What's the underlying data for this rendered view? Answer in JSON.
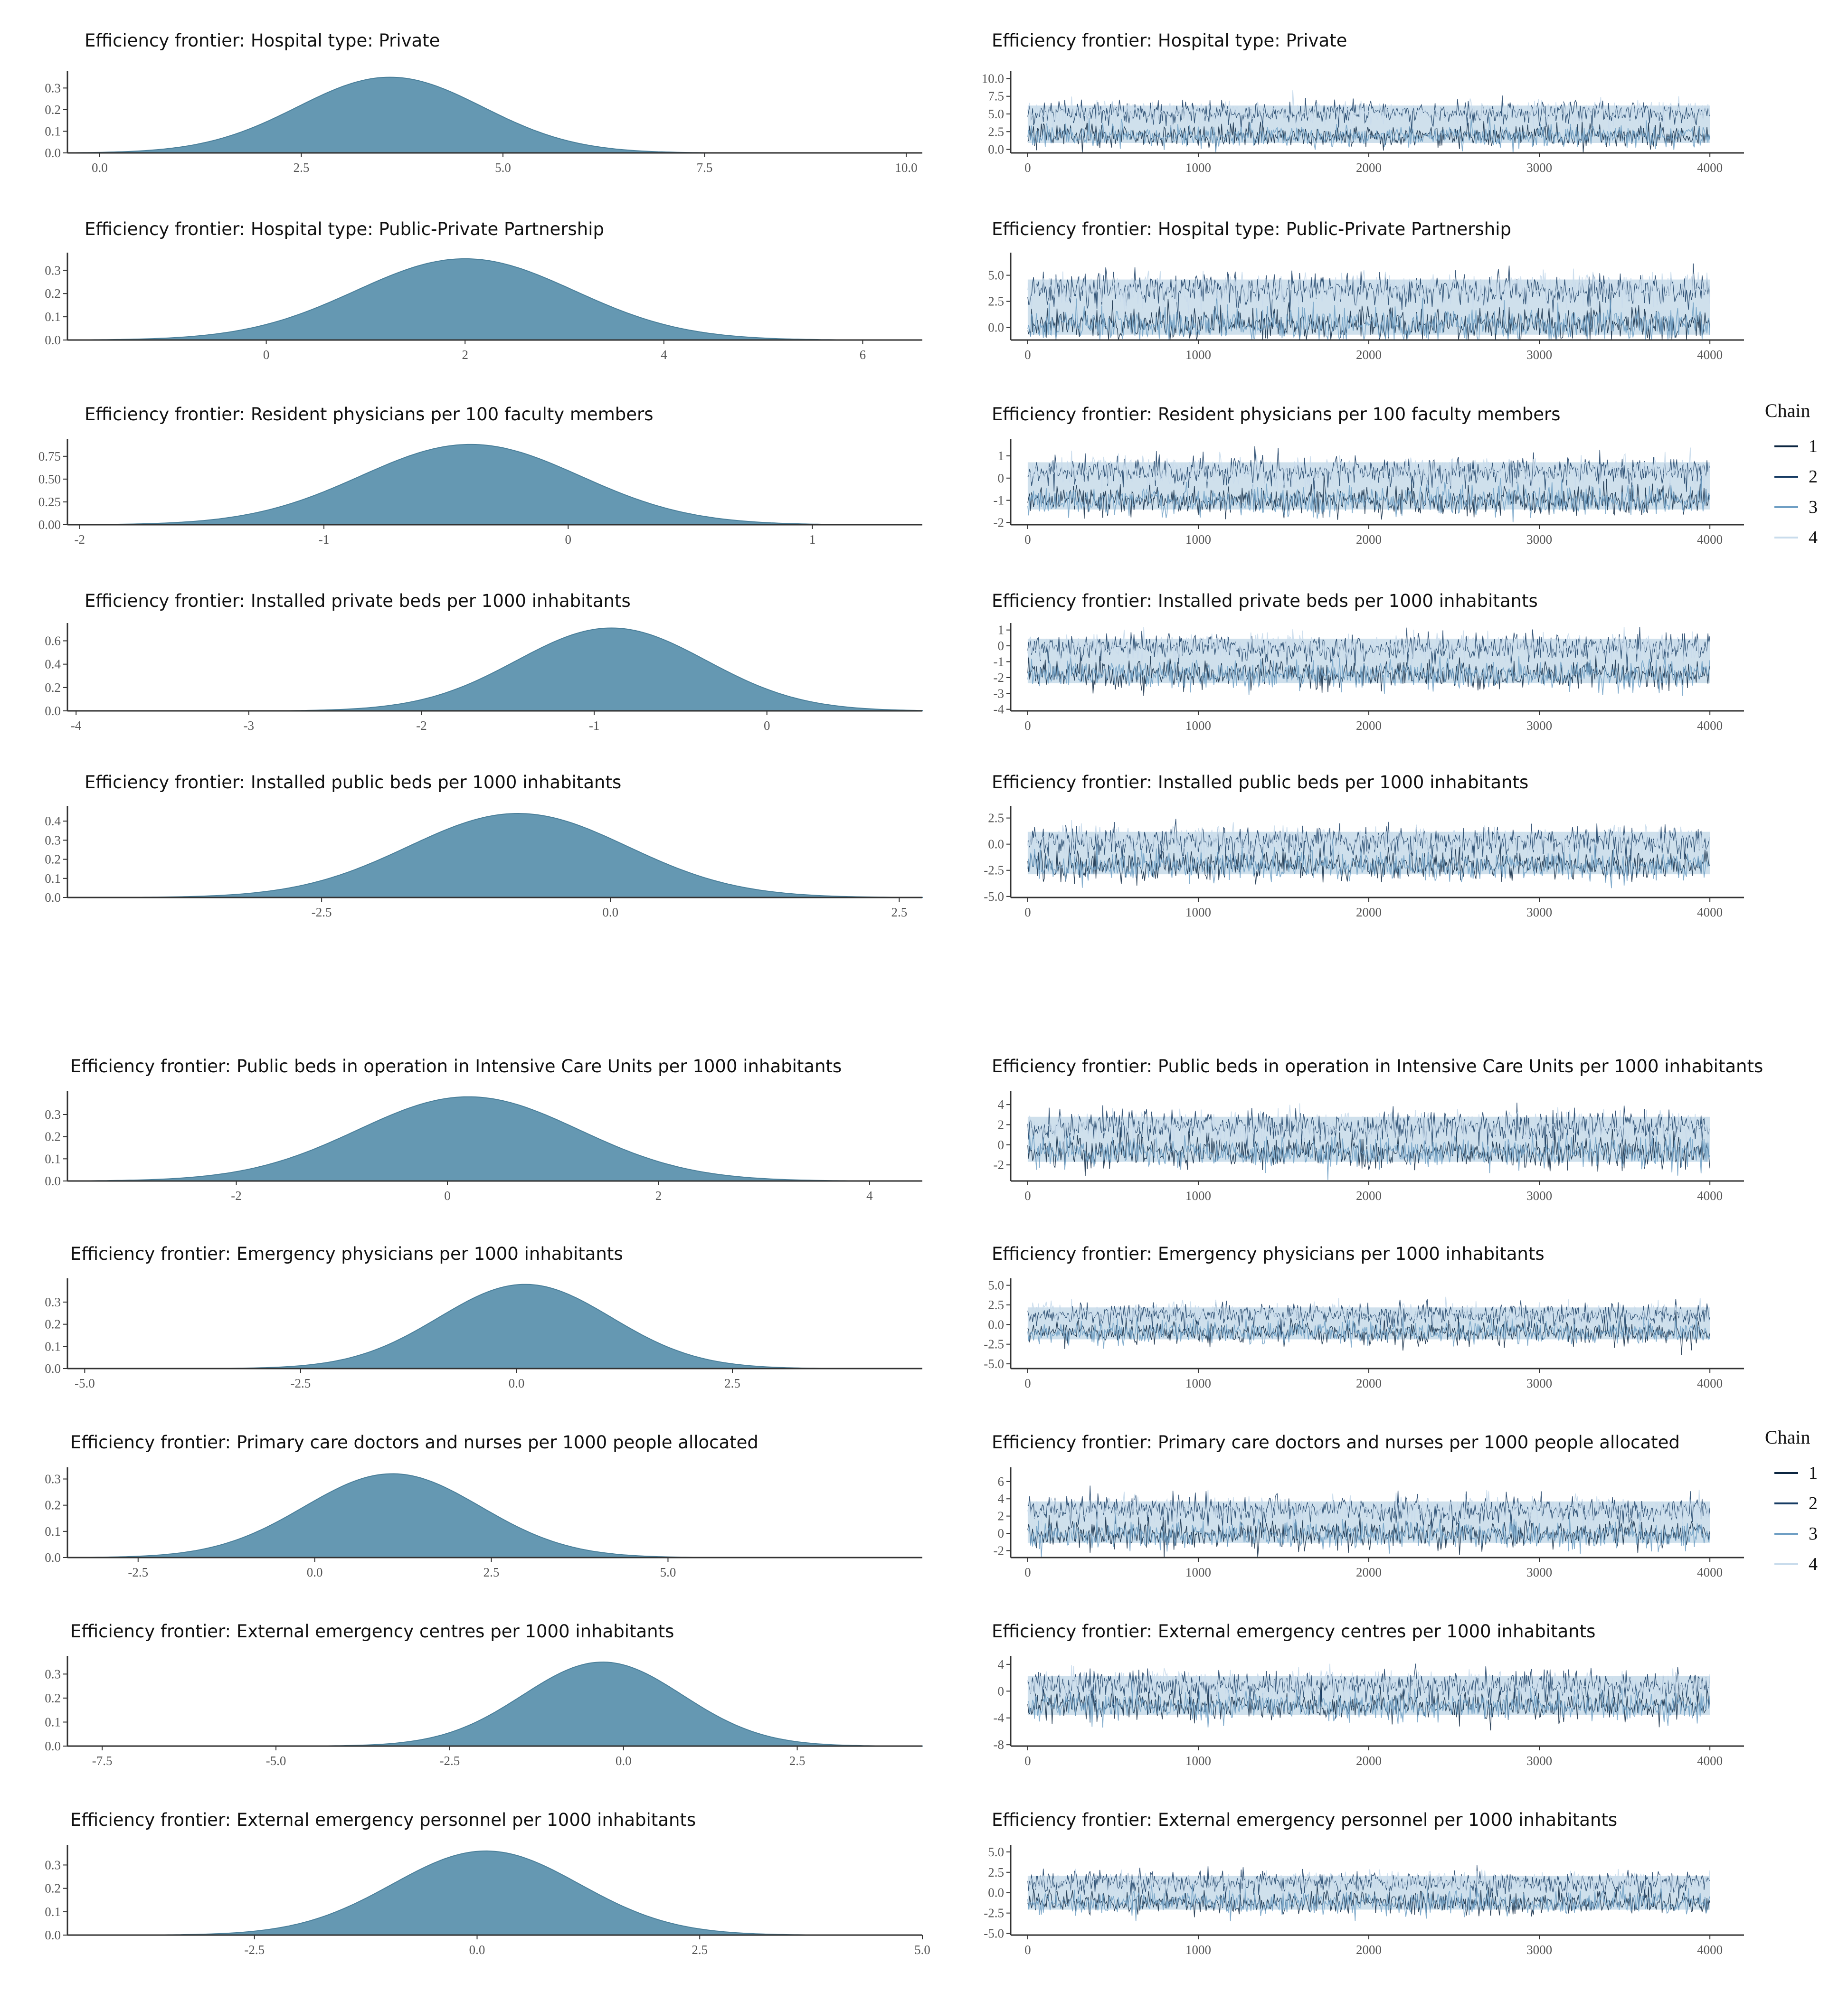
{
  "figure": {
    "type": "mcmc-diagnostics",
    "description_panels": "posterior density (left) and trace plots (right)"
  },
  "colors": {
    "density_fill": "#6598b2",
    "density_edge": "#4a7f9a",
    "trace_band": "#cfe0ec",
    "chain_colors": [
      "#0b2540",
      "#163b63",
      "#6f9fc4",
      "#c9dcec"
    ],
    "axis": "#333333"
  },
  "legends": [
    {
      "title": "Chain",
      "entries": [
        "1",
        "2",
        "3",
        "4"
      ]
    },
    {
      "title": "Chain",
      "entries": [
        "1",
        "2",
        "3",
        "4"
      ]
    }
  ],
  "chart_data": [
    {
      "type": "area",
      "title": "Efficiency frontier:  Hospital type: Private",
      "x_ticks": [
        "0.0",
        "2.5",
        "5.0",
        "7.5",
        "10.0"
      ],
      "x_tick_values": [
        0,
        2.5,
        5,
        7.5,
        10
      ],
      "y_ticks": [
        "0.0",
        "0.1",
        "0.2",
        "0.3"
      ],
      "y_tick_values": [
        0,
        0.1,
        0.2,
        0.3
      ],
      "xlim": [
        -0.4,
        10.2
      ],
      "ylim": [
        0,
        0.36
      ],
      "mean": 3.6,
      "sd": 1.15,
      "peak": 0.35
    },
    {
      "type": "line",
      "title": "Efficiency frontier:  Hospital type: Private",
      "x_ticks": [
        "0",
        "1000",
        "2000",
        "3000",
        "4000"
      ],
      "x_tick_values": [
        0,
        1000,
        2000,
        3000,
        4000
      ],
      "y_ticks": [
        "0.0",
        "2.5",
        "5.0",
        "7.5",
        "10.0"
      ],
      "y_tick_values": [
        0,
        2.5,
        5,
        7.5,
        10
      ],
      "xlim": [
        -100,
        4200
      ],
      "ylim": [
        -0.5,
        10.5
      ],
      "center_low": 1.9,
      "center_high": 5.2,
      "spread": 1.8,
      "iterations": 4000
    },
    {
      "type": "area",
      "title": "Efficiency frontier:  Hospital type: Public-Private  Partnership",
      "x_ticks": [
        "0",
        "2",
        "4",
        "6"
      ],
      "x_tick_values": [
        0,
        2,
        4,
        6
      ],
      "y_ticks": [
        "0.0",
        "0.1",
        "0.2",
        "0.3"
      ],
      "y_tick_values": [
        0,
        0.1,
        0.2,
        0.3
      ],
      "xlim": [
        -2,
        6.6
      ],
      "ylim": [
        0,
        0.36
      ],
      "mean": 2.0,
      "sd": 1.1,
      "peak": 0.35
    },
    {
      "type": "line",
      "title": "Efficiency frontier:  Hospital type: Public-Private  Partnership",
      "x_ticks": [
        "0",
        "1000",
        "2000",
        "3000",
        "4000"
      ],
      "x_tick_values": [
        0,
        1000,
        2000,
        3000,
        4000
      ],
      "y_ticks": [
        "0.0",
        "2.5",
        "5.0"
      ],
      "y_tick_values": [
        0,
        2.5,
        5
      ],
      "xlim": [
        -100,
        4200
      ],
      "ylim": [
        -1.2,
        6.8
      ],
      "center_low": 0.3,
      "center_high": 3.6,
      "spread": 1.8,
      "iterations": 4000
    },
    {
      "type": "area",
      "title": "Efficiency frontier:  Resident physicians per 100 faculty members",
      "x_ticks": [
        "-2",
        "-1",
        "0",
        "1"
      ],
      "x_tick_values": [
        -2,
        -1,
        0,
        1
      ],
      "y_ticks": [
        "0.00",
        "0.25",
        "0.50",
        "0.75"
      ],
      "y_tick_values": [
        0,
        0.25,
        0.5,
        0.75
      ],
      "xlim": [
        -2.05,
        1.45
      ],
      "ylim": [
        0,
        0.9
      ],
      "mean": -0.4,
      "sd": 0.45,
      "peak": 0.88
    },
    {
      "type": "line",
      "title": "Efficiency frontier:  Resident physicians per 100 faculty members",
      "x_ticks": [
        "0",
        "1000",
        "2000",
        "3000",
        "4000"
      ],
      "x_tick_values": [
        0,
        1000,
        2000,
        3000,
        4000
      ],
      "y_ticks": [
        "-2",
        "-1",
        "0",
        "1"
      ],
      "y_tick_values": [
        -2,
        -1,
        0,
        1
      ],
      "xlim": [
        -100,
        4200
      ],
      "ylim": [
        -2.1,
        1.6
      ],
      "center_low": -1.0,
      "center_high": 0.3,
      "spread": 0.75,
      "iterations": 4000
    },
    {
      "type": "area",
      "title": "Efficiency frontier:  Installed private  beds per 1000 inhabitants",
      "x_ticks": [
        "-4",
        "-3",
        "-2",
        "-1",
        "0"
      ],
      "x_tick_values": [
        -4,
        -3,
        -2,
        -1,
        0
      ],
      "y_ticks": [
        "0.0",
        "0.2",
        "0.4",
        "0.6"
      ],
      "y_tick_values": [
        0,
        0.2,
        0.4,
        0.6
      ],
      "xlim": [
        -4.05,
        0.9
      ],
      "ylim": [
        0,
        0.72
      ],
      "mean": -0.9,
      "sd": 0.55,
      "peak": 0.71
    },
    {
      "type": "line",
      "title": "Efficiency frontier:  Installed private  beds per 1000 inhabitants",
      "x_ticks": [
        "0",
        "1000",
        "2000",
        "3000",
        "4000"
      ],
      "x_tick_values": [
        0,
        1000,
        2000,
        3000,
        4000
      ],
      "y_ticks": [
        "-4",
        "-3",
        "-2",
        "-1",
        "0",
        "1"
      ],
      "y_tick_values": [
        -4,
        -3,
        -2,
        -1,
        0,
        1
      ],
      "xlim": [
        -100,
        4200
      ],
      "ylim": [
        -4.1,
        1.2
      ],
      "center_low": -1.8,
      "center_high": -0.1,
      "spread": 1.0,
      "iterations": 4000
    },
    {
      "type": "area",
      "title": "Efficiency frontier:  Installed public beds per 1000 inhabitants",
      "x_ticks": [
        "-2.5",
        "0.0",
        "2.5"
      ],
      "x_tick_values": [
        -2.5,
        0,
        2.5
      ],
      "y_ticks": [
        "0.0",
        "0.1",
        "0.2",
        "0.3",
        "0.4"
      ],
      "y_tick_values": [
        0,
        0.1,
        0.2,
        0.3,
        0.4
      ],
      "xlim": [
        -4.7,
        2.7
      ],
      "ylim": [
        0,
        0.46
      ],
      "mean": -0.8,
      "sd": 0.95,
      "peak": 0.44
    },
    {
      "type": "line",
      "title": "Efficiency frontier:  Installed public beds per 1000 inhabitants",
      "x_ticks": [
        "0",
        "1000",
        "2000",
        "3000",
        "4000"
      ],
      "x_tick_values": [
        0,
        1000,
        2000,
        3000,
        4000
      ],
      "y_ticks": [
        "-5.0",
        "-2.5",
        "0.0",
        "2.5"
      ],
      "y_tick_values": [
        -5,
        -2.5,
        0,
        2.5
      ],
      "xlim": [
        -100,
        4200
      ],
      "ylim": [
        -5.1,
        3.3
      ],
      "center_low": -2.0,
      "center_high": 0.3,
      "spread": 1.6,
      "iterations": 4000
    },
    {
      "type": "area",
      "title": "Efficiency frontier:  Public beds in operation  in Intensive  Care Units per 1000 inhabitants",
      "x_ticks": [
        "-2",
        "0",
        "2",
        "4"
      ],
      "x_tick_values": [
        -2,
        0,
        2,
        4
      ],
      "y_ticks": [
        "0.0",
        "0.1",
        "0.2",
        "0.3"
      ],
      "y_tick_values": [
        0,
        0.1,
        0.2,
        0.3
      ],
      "xlim": [
        -3.6,
        4.5
      ],
      "ylim": [
        0,
        0.39
      ],
      "mean": 0.2,
      "sd": 1.05,
      "peak": 0.38
    },
    {
      "type": "line",
      "title": "Efficiency frontier:  Public beds in operation  in Intensive  Care Units per 1000 inhabitants",
      "x_ticks": [
        "0",
        "1000",
        "2000",
        "3000",
        "4000"
      ],
      "x_tick_values": [
        0,
        1000,
        2000,
        3000,
        4000
      ],
      "y_ticks": [
        "-2",
        "0",
        "2",
        "4"
      ],
      "y_tick_values": [
        -2,
        0,
        2,
        4
      ],
      "xlim": [
        -100,
        4200
      ],
      "ylim": [
        -3.6,
        5.0
      ],
      "center_low": -0.7,
      "center_high": 1.8,
      "spread": 1.8,
      "iterations": 4000
    },
    {
      "type": "area",
      "title": "Efficiency frontier:  Emergency physicians per 1000 inhabitants",
      "x_ticks": [
        "-5.0",
        "-2.5",
        "0.0",
        "2.5"
      ],
      "x_tick_values": [
        -5,
        -2.5,
        0,
        2.5
      ],
      "y_ticks": [
        "0.0",
        "0.1",
        "0.2",
        "0.3"
      ],
      "y_tick_values": [
        0,
        0.1,
        0.2,
        0.3
      ],
      "xlim": [
        -5.2,
        4.7
      ],
      "ylim": [
        0,
        0.39
      ],
      "mean": 0.1,
      "sd": 1.0,
      "peak": 0.38
    },
    {
      "type": "line",
      "title": "Efficiency frontier:  Emergency physicians per 1000 inhabitants",
      "x_ticks": [
        "0",
        "1000",
        "2000",
        "3000",
        "4000"
      ],
      "x_tick_values": [
        0,
        1000,
        2000,
        3000,
        4000
      ],
      "y_ticks": [
        "-5.0",
        "-2.5",
        "0.0",
        "2.5",
        "5.0"
      ],
      "y_tick_values": [
        -5,
        -2.5,
        0,
        2.5,
        5
      ],
      "xlim": [
        -100,
        4200
      ],
      "ylim": [
        -5.6,
        5.4
      ],
      "center_low": -1.0,
      "center_high": 1.3,
      "spread": 1.6,
      "iterations": 4000
    },
    {
      "type": "area",
      "title": "Efficiency frontier:  Primary care doctors and nurses per 1000  people  allocated",
      "x_ticks": [
        "-2.5",
        "0.0",
        "2.5",
        "5.0"
      ],
      "x_tick_values": [
        -2.5,
        0,
        2.5,
        5
      ],
      "y_ticks": [
        "0.0",
        "0.1",
        "0.2",
        "0.3"
      ],
      "y_tick_values": [
        0,
        0.1,
        0.2,
        0.3
      ],
      "xlim": [
        -3.5,
        8.6
      ],
      "ylim": [
        0,
        0.33
      ],
      "mean": 1.1,
      "sd": 1.25,
      "peak": 0.32
    },
    {
      "type": "line",
      "title": "Efficiency frontier:  Primary care doctors and nurses per 1000  people  allocated",
      "x_ticks": [
        "0",
        "1000",
        "2000",
        "3000",
        "4000"
      ],
      "x_tick_values": [
        0,
        1000,
        2000,
        3000,
        4000
      ],
      "y_ticks": [
        "-2",
        "0",
        "2",
        "4",
        "6"
      ],
      "y_tick_values": [
        -2,
        0,
        2,
        4,
        6
      ],
      "xlim": [
        -100,
        4200
      ],
      "ylim": [
        -2.8,
        7.2
      ],
      "center_low": -0.1,
      "center_high": 2.7,
      "spread": 1.8,
      "iterations": 4000
    },
    {
      "type": "area",
      "title": "Efficiency frontier:  External emergency centres per 1000 inhabitants",
      "x_ticks": [
        "-7.5",
        "-5.0",
        "-2.5",
        "0.0",
        "2.5"
      ],
      "x_tick_values": [
        -7.5,
        -5,
        -2.5,
        0,
        2.5
      ],
      "y_ticks": [
        "0.0",
        "0.1",
        "0.2",
        "0.3"
      ],
      "y_tick_values": [
        0,
        0.1,
        0.2,
        0.3
      ],
      "xlim": [
        -8.0,
        4.3
      ],
      "ylim": [
        0,
        0.36
      ],
      "mean": -0.3,
      "sd": 1.15,
      "peak": 0.35
    },
    {
      "type": "line",
      "title": "Efficiency frontier:  External emergency centres per 1000 inhabitants",
      "x_ticks": [
        "0",
        "1000",
        "2000",
        "3000",
        "4000"
      ],
      "x_tick_values": [
        0,
        1000,
        2000,
        3000,
        4000
      ],
      "y_ticks": [
        "-8",
        "-4",
        "0",
        "4"
      ],
      "y_tick_values": [
        -8,
        -4,
        0,
        4
      ],
      "xlim": [
        -100,
        4200
      ],
      "ylim": [
        -8.2,
        4.7
      ],
      "center_low": -2.2,
      "center_high": 0.9,
      "spread": 2.4,
      "iterations": 4000
    },
    {
      "type": "area",
      "title": "Efficiency frontier:  External emergency  personnel  per 1000 inhabitants",
      "x_ticks": [
        "-2.5",
        "0.0",
        "2.5",
        "5.0"
      ],
      "x_tick_values": [
        -2.5,
        0,
        2.5,
        5
      ],
      "y_ticks": [
        "0.0",
        "0.1",
        "0.2",
        "0.3"
      ],
      "y_tick_values": [
        0,
        0.1,
        0.2,
        0.3
      ],
      "xlim": [
        -4.6,
        5.0
      ],
      "ylim": [
        0,
        0.37
      ],
      "mean": 0.1,
      "sd": 1.05,
      "peak": 0.36
    },
    {
      "type": "line",
      "title": "Efficiency frontier:  External emergency  personnel  per 1000 inhabitants",
      "x_ticks": [
        "0",
        "1000",
        "2000",
        "3000",
        "4000"
      ],
      "x_tick_values": [
        0,
        1000,
        2000,
        3000,
        4000
      ],
      "y_ticks": [
        "-5.0",
        "-2.5",
        "0.0",
        "2.5",
        "5.0"
      ],
      "y_tick_values": [
        -5,
        -2.5,
        0,
        2.5,
        5
      ],
      "xlim": [
        -100,
        4200
      ],
      "ylim": [
        -5.2,
        5.4
      ],
      "center_low": -1.2,
      "center_high": 1.2,
      "spread": 1.6,
      "iterations": 4000
    }
  ]
}
